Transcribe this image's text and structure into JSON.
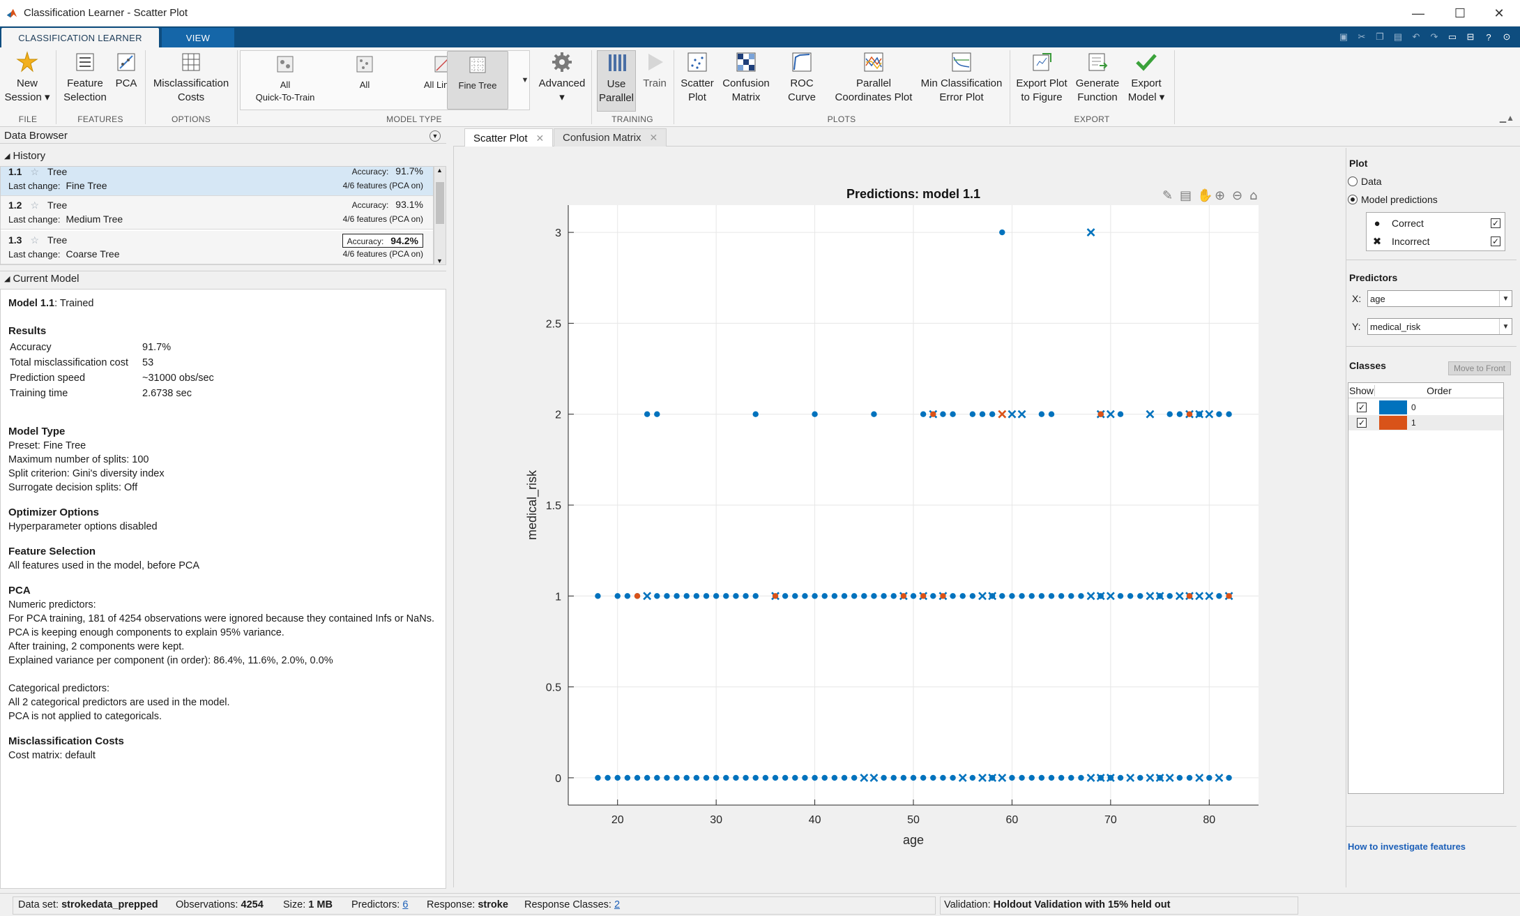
{
  "window": {
    "title": "Classification Learner - Scatter Plot"
  },
  "tabs": {
    "classification_learner": "CLASSIFICATION LEARNER",
    "view": "VIEW"
  },
  "ribbon": {
    "file": {
      "new_session": [
        "New",
        "Session"
      ],
      "section": "FILE"
    },
    "features": {
      "feature_selection": [
        "Feature",
        "Selection"
      ],
      "pca": "PCA",
      "section": "FEATURES"
    },
    "options": {
      "misclassification_costs": [
        "Misclassification",
        "Costs"
      ],
      "section": "OPTIONS"
    },
    "model_type": {
      "items": [
        [
          "All",
          "Quick-To-Train"
        ],
        [
          "All"
        ],
        [
          "All Linear"
        ],
        [
          "Fine Tree"
        ]
      ],
      "selected_index": 3,
      "advanced": "Advanced",
      "section": "MODEL TYPE"
    },
    "training": {
      "use_parallel": [
        "Use",
        "Parallel"
      ],
      "train": "Train",
      "section": "TRAINING"
    },
    "plots": {
      "scatter_plot": [
        "Scatter",
        "Plot"
      ],
      "confusion_matrix": [
        "Confusion",
        "Matrix"
      ],
      "roc_curve": "ROC Curve",
      "parallel_coordinates": [
        "Parallel",
        "Coordinates Plot"
      ],
      "min_classification_error": [
        "Min Classification",
        "Error Plot"
      ],
      "section": "PLOTS"
    },
    "export": {
      "export_plot": [
        "Export Plot",
        "to Figure"
      ],
      "generate_function": [
        "Generate",
        "Function"
      ],
      "export_model": [
        "Export",
        "Model"
      ],
      "section": "EXPORT"
    }
  },
  "data_browser": {
    "title": "Data Browser",
    "history_title": "History",
    "history": [
      {
        "id": "1.1",
        "type": "Tree",
        "accuracy_label": "Accuracy:",
        "accuracy": "91.7%",
        "last_change_label": "Last change:",
        "last_change": "Fine Tree",
        "features": "4/6 features (PCA on)",
        "selected": true,
        "best": false
      },
      {
        "id": "1.2",
        "type": "Tree",
        "accuracy_label": "Accuracy:",
        "accuracy": "93.1%",
        "last_change_label": "Last change:",
        "last_change": "Medium Tree",
        "features": "4/6 features (PCA on)",
        "selected": false,
        "best": false
      },
      {
        "id": "1.3",
        "type": "Tree",
        "accuracy_label": "Accuracy:",
        "accuracy": "94.2%",
        "last_change_label": "Last change:",
        "last_change": "Coarse Tree",
        "features": "4/6 features (PCA on)",
        "selected": false,
        "best": true
      }
    ],
    "current_model_title": "Current Model"
  },
  "current_model": {
    "heading_bold": "Model 1.1",
    "heading_rest": ": Trained",
    "results_title": "Results",
    "results": [
      {
        "k": "Accuracy",
        "v": "91.7%"
      },
      {
        "k": "Total misclassification cost",
        "v": "53"
      },
      {
        "k": "Prediction speed",
        "v": "~31000 obs/sec"
      },
      {
        "k": "Training time",
        "v": "2.6738 sec"
      }
    ],
    "model_type_title": "Model Type",
    "model_type": [
      "Preset: Fine Tree",
      "Maximum number of splits: 100",
      "Split criterion: Gini's diversity index",
      "Surrogate decision splits: Off"
    ],
    "optimizer_title": "Optimizer Options",
    "optimizer": [
      "Hyperparameter options disabled"
    ],
    "feature_selection_title": "Feature Selection",
    "feature_selection": [
      "All features used in the model, before PCA"
    ],
    "pca_title": "PCA",
    "pca": [
      "Numeric predictors:",
      "For PCA training, 181 of 4254 observations were ignored because they contained Infs or NaNs.",
      "PCA is keeping enough components to explain 95% variance.",
      "After training, 2 components were kept.",
      "Explained variance per component (in order): 86.4%, 11.6%, 2.0%, 0.0%",
      "",
      "Categorical predictors:",
      "All 2 categorical predictors are used in the model.",
      "PCA is not applied to categoricals."
    ],
    "costs_title": "Misclassification Costs",
    "costs": [
      "Cost matrix: default"
    ]
  },
  "doc_tabs": [
    {
      "label": "Scatter Plot",
      "active": true
    },
    {
      "label": "Confusion Matrix",
      "active": false
    }
  ],
  "right_panel": {
    "plot_title": "Plot",
    "plot_options": [
      {
        "label": "Data",
        "checked": false
      },
      {
        "label": "Model predictions",
        "checked": true
      }
    ],
    "legend": [
      {
        "symbol": "●",
        "label": "Correct",
        "checked": true
      },
      {
        "symbol": "✖",
        "label": "Incorrect",
        "checked": true
      }
    ],
    "predictors_title": "Predictors",
    "x_label": "X:",
    "x_value": "age",
    "y_label": "Y:",
    "y_value": "medical_risk",
    "classes_title": "Classes",
    "move_to_front": "Move to Front",
    "class_headers": [
      "Show",
      "Order"
    ],
    "classes": [
      {
        "label": "0",
        "color": "#0072bd",
        "checked": true
      },
      {
        "label": "1",
        "color": "#d95319",
        "checked": true
      }
    ],
    "help_link": "How to investigate features"
  },
  "status": {
    "dataset_label": "Data set:",
    "dataset": "strokedata_prepped",
    "obs_label": "Observations:",
    "obs": "4254",
    "size_label": "Size:",
    "size": "1 MB",
    "predictors_label": "Predictors:",
    "predictors": "6",
    "response_label": "Response:",
    "response": "stroke",
    "classes_label": "Response Classes:",
    "classes": "2",
    "validation_label": "Validation:",
    "validation": "Holdout Validation with 15% held out"
  },
  "colors": {
    "correct_class0": "#0072bd",
    "class1": "#d95319",
    "tabstrip": "#0e4d7f"
  },
  "chart_data": {
    "type": "scatter",
    "title": "Predictions: model 1.1",
    "xlabel": "age",
    "ylabel": "medical_risk",
    "xlim": [
      15,
      85
    ],
    "ylim": [
      -0.15,
      3.15
    ],
    "xticks": [
      20,
      30,
      40,
      50,
      60,
      70,
      80
    ],
    "yticks": [
      0,
      0.5,
      1,
      1.5,
      2,
      2.5,
      3
    ],
    "grid": true,
    "series": [
      {
        "name": "Correct",
        "marker": "dot",
        "color": "#0072bd",
        "points": [
          [
            59,
            3
          ],
          [
            23,
            2
          ],
          [
            24,
            2
          ],
          [
            34,
            2
          ],
          [
            40,
            2
          ],
          [
            46,
            2
          ],
          [
            51,
            2
          ],
          [
            53,
            2
          ],
          [
            54,
            2
          ],
          [
            56,
            2
          ],
          [
            57,
            2
          ],
          [
            58,
            2
          ],
          [
            63,
            2
          ],
          [
            64,
            2
          ],
          [
            69,
            2
          ],
          [
            71,
            2
          ],
          [
            76,
            2
          ],
          [
            77,
            2
          ],
          [
            79,
            2
          ],
          [
            81,
            2
          ],
          [
            82,
            2
          ],
          [
            18,
            1
          ],
          [
            20,
            1
          ],
          [
            21,
            1
          ],
          [
            22,
            1
          ],
          [
            24,
            1
          ],
          [
            25,
            1
          ],
          [
            26,
            1
          ],
          [
            27,
            1
          ],
          [
            28,
            1
          ],
          [
            29,
            1
          ],
          [
            30,
            1
          ],
          [
            31,
            1
          ],
          [
            32,
            1
          ],
          [
            33,
            1
          ],
          [
            34,
            1
          ],
          [
            37,
            1
          ],
          [
            38,
            1
          ],
          [
            39,
            1
          ],
          [
            40,
            1
          ],
          [
            41,
            1
          ],
          [
            42,
            1
          ],
          [
            43,
            1
          ],
          [
            44,
            1
          ],
          [
            45,
            1
          ],
          [
            46,
            1
          ],
          [
            47,
            1
          ],
          [
            48,
            1
          ],
          [
            50,
            1
          ],
          [
            52,
            1
          ],
          [
            54,
            1
          ],
          [
            55,
            1
          ],
          [
            56,
            1
          ],
          [
            58,
            1
          ],
          [
            59,
            1
          ],
          [
            60,
            1
          ],
          [
            61,
            1
          ],
          [
            62,
            1
          ],
          [
            63,
            1
          ],
          [
            64,
            1
          ],
          [
            65,
            1
          ],
          [
            66,
            1
          ],
          [
            67,
            1
          ],
          [
            69,
            1
          ],
          [
            71,
            1
          ],
          [
            72,
            1
          ],
          [
            73,
            1
          ],
          [
            75,
            1
          ],
          [
            76,
            1
          ],
          [
            78,
            1
          ],
          [
            81,
            1
          ],
          [
            18,
            0
          ],
          [
            19,
            0
          ],
          [
            20,
            0
          ],
          [
            21,
            0
          ],
          [
            22,
            0
          ],
          [
            23,
            0
          ],
          [
            24,
            0
          ],
          [
            25,
            0
          ],
          [
            26,
            0
          ],
          [
            27,
            0
          ],
          [
            28,
            0
          ],
          [
            29,
            0
          ],
          [
            30,
            0
          ],
          [
            31,
            0
          ],
          [
            32,
            0
          ],
          [
            33,
            0
          ],
          [
            34,
            0
          ],
          [
            35,
            0
          ],
          [
            36,
            0
          ],
          [
            37,
            0
          ],
          [
            38,
            0
          ],
          [
            39,
            0
          ],
          [
            40,
            0
          ],
          [
            41,
            0
          ],
          [
            42,
            0
          ],
          [
            43,
            0
          ],
          [
            44,
            0
          ],
          [
            47,
            0
          ],
          [
            48,
            0
          ],
          [
            49,
            0
          ],
          [
            50,
            0
          ],
          [
            51,
            0
          ],
          [
            52,
            0
          ],
          [
            53,
            0
          ],
          [
            54,
            0
          ],
          [
            56,
            0
          ],
          [
            58,
            0
          ],
          [
            60,
            0
          ],
          [
            61,
            0
          ],
          [
            62,
            0
          ],
          [
            63,
            0
          ],
          [
            64,
            0
          ],
          [
            65,
            0
          ],
          [
            66,
            0
          ],
          [
            67,
            0
          ],
          [
            69,
            0
          ],
          [
            70,
            0
          ],
          [
            71,
            0
          ],
          [
            73,
            0
          ],
          [
            75,
            0
          ],
          [
            77,
            0
          ],
          [
            78,
            0
          ],
          [
            80,
            0
          ],
          [
            82,
            0
          ]
        ]
      },
      {
        "name": "Incorrect",
        "marker": "x",
        "color": "#0072bd",
        "points": [
          [
            68,
            3
          ],
          [
            52,
            2
          ],
          [
            60,
            2
          ],
          [
            61,
            2
          ],
          [
            69,
            2
          ],
          [
            70,
            2
          ],
          [
            74,
            2
          ],
          [
            78,
            2
          ],
          [
            79,
            2
          ],
          [
            80,
            2
          ],
          [
            23,
            1
          ],
          [
            36,
            1
          ],
          [
            49,
            1
          ],
          [
            51,
            1
          ],
          [
            53,
            1
          ],
          [
            57,
            1
          ],
          [
            58,
            1
          ],
          [
            68,
            1
          ],
          [
            69,
            1
          ],
          [
            70,
            1
          ],
          [
            74,
            1
          ],
          [
            75,
            1
          ],
          [
            77,
            1
          ],
          [
            78,
            1
          ],
          [
            79,
            1
          ],
          [
            80,
            1
          ],
          [
            82,
            1
          ],
          [
            45,
            0
          ],
          [
            46,
            0
          ],
          [
            55,
            0
          ],
          [
            57,
            0
          ],
          [
            58,
            0
          ],
          [
            59,
            0
          ],
          [
            68,
            0
          ],
          [
            69,
            0
          ],
          [
            70,
            0
          ],
          [
            72,
            0
          ],
          [
            74,
            0
          ],
          [
            75,
            0
          ],
          [
            76,
            0
          ],
          [
            79,
            0
          ],
          [
            81,
            0
          ]
        ]
      },
      {
        "name": "Class 1 correct",
        "marker": "dot",
        "color": "#d95319",
        "points": [
          [
            22,
            1
          ],
          [
            36,
            1
          ],
          [
            49,
            1
          ],
          [
            51,
            1
          ],
          [
            53,
            1
          ],
          [
            78,
            1
          ],
          [
            82,
            1
          ],
          [
            52,
            2
          ],
          [
            69,
            2
          ],
          [
            78,
            2
          ]
        ]
      },
      {
        "name": "Class 1 incorrect",
        "marker": "x",
        "color": "#d95319",
        "points": [
          [
            59,
            2
          ]
        ]
      }
    ]
  }
}
